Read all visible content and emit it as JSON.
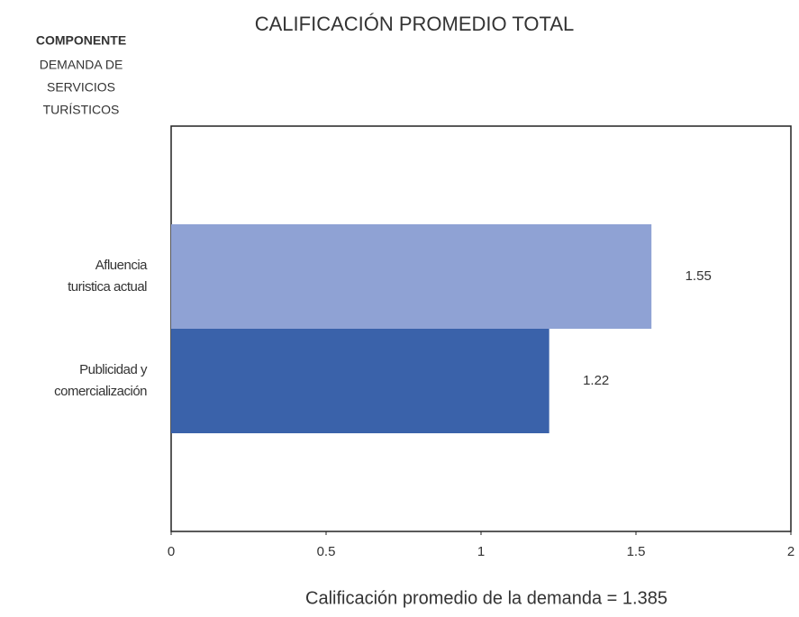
{
  "chart_data": {
    "type": "barh",
    "title": "CALIFICACIÓN PROMEDIO TOTAL",
    "ylabel_title": "COMPONENTE",
    "ylabel": [
      "DEMANDA DE",
      "SERVICIOS",
      "TURÍSTICOS"
    ],
    "categories": [
      [
        "Afluencia",
        "turistica actual"
      ],
      [
        "Publicidad  y",
        "comercialización"
      ]
    ],
    "values": [
      1.55,
      1.22
    ],
    "colors": [
      "#8fa2d4",
      "#3a62aa"
    ],
    "xlim": [
      0,
      2
    ],
    "xticks": [
      0,
      0.5,
      1,
      1.5,
      2
    ],
    "annotation": "Calificación  promedio  de  la  demanda  =  1.385"
  }
}
